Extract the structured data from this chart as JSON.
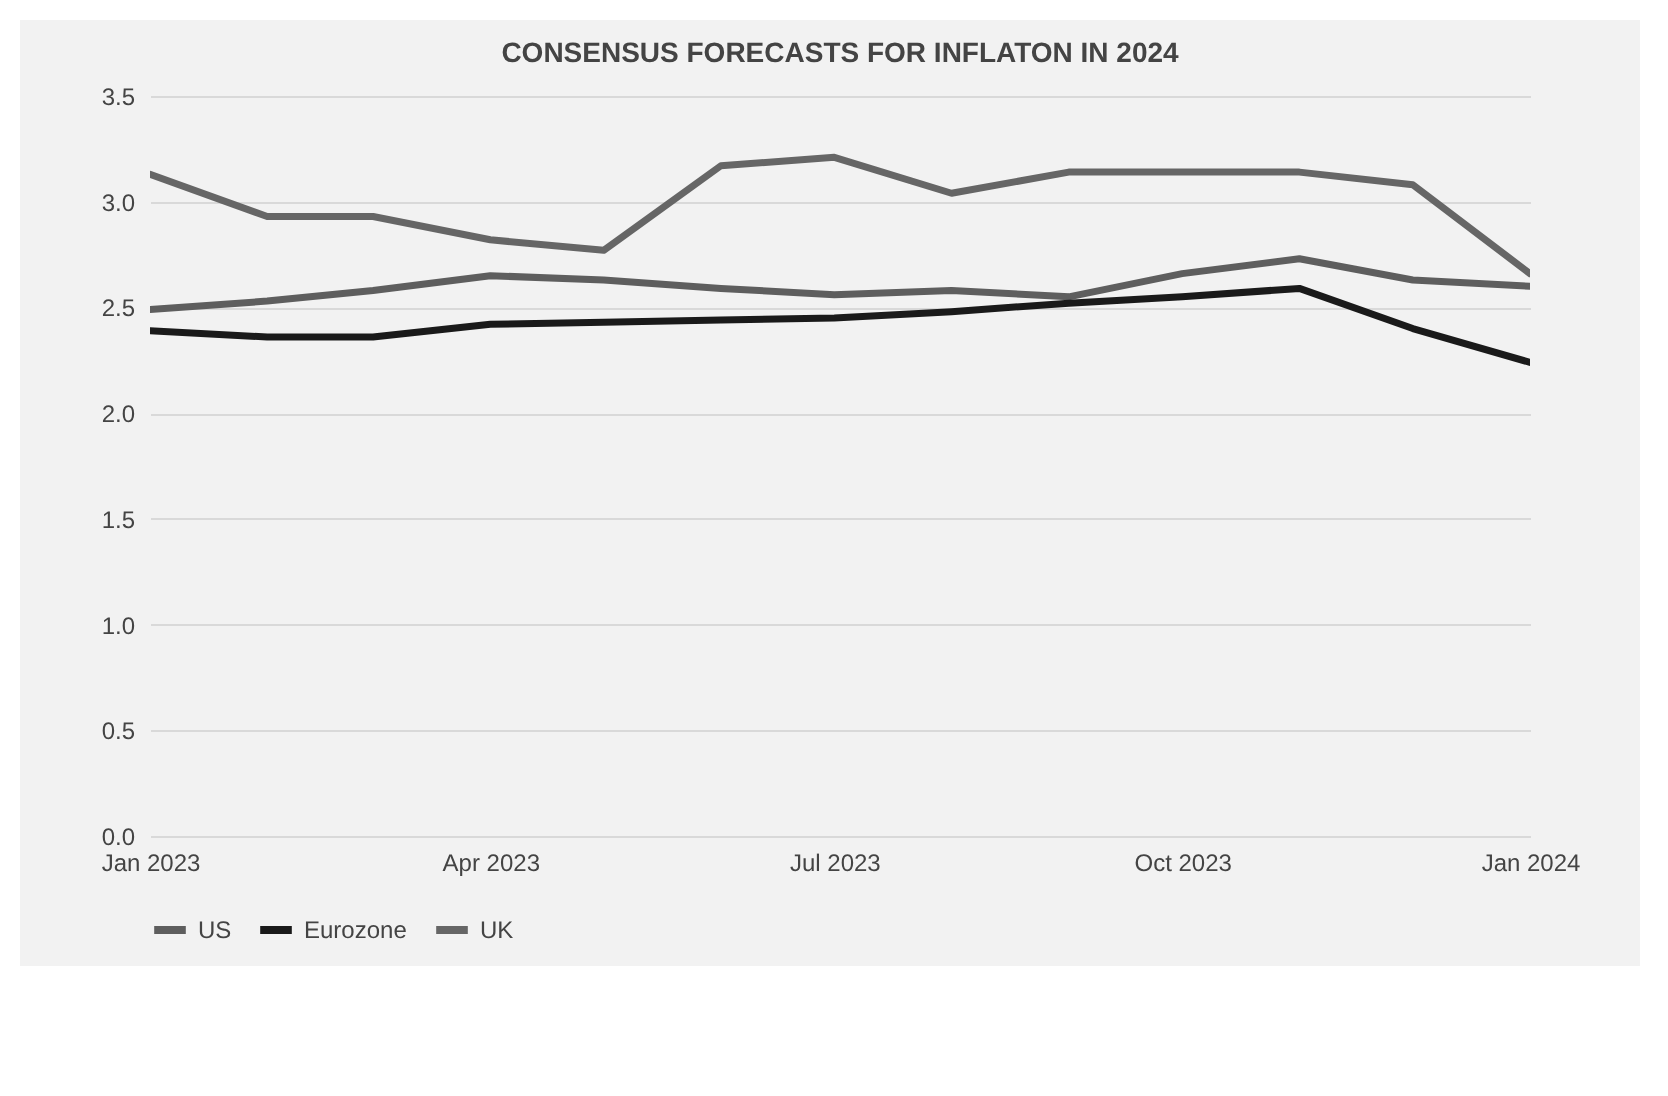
{
  "chart_data": {
    "type": "line",
    "title": "CONSENSUS FORECASTS FOR INFLATON IN 2024",
    "x": [
      "2023-01",
      "2023-02",
      "2023-03",
      "2023-04",
      "2023-05",
      "2023-06",
      "2023-07",
      "2023-08",
      "2023-09",
      "2023-10",
      "2023-11",
      "2023-12",
      "2024-01"
    ],
    "series": [
      {
        "name": "US",
        "color": "#5e5e5e",
        "values": [
          2.49,
          2.53,
          2.58,
          2.65,
          2.63,
          2.59,
          2.56,
          2.58,
          2.55,
          2.66,
          2.73,
          2.63,
          2.6
        ]
      },
      {
        "name": "Eurozone",
        "color": "#1a1a1a",
        "values": [
          2.39,
          2.36,
          2.36,
          2.42,
          2.43,
          2.44,
          2.45,
          2.48,
          2.52,
          2.55,
          2.59,
          2.4,
          2.24
        ]
      },
      {
        "name": "UK",
        "color": "#666666",
        "values": [
          3.13,
          2.93,
          2.93,
          2.82,
          2.77,
          3.17,
          3.21,
          3.04,
          3.14,
          3.14,
          3.14,
          3.08,
          2.66
        ]
      }
    ],
    "xlim": [
      "2023-01",
      "2024-01"
    ],
    "xticks": [
      {
        "value": "2023-01",
        "label": "Jan 2023"
      },
      {
        "value": "2023-04",
        "label": "Apr 2023"
      },
      {
        "value": "2023-07",
        "label": "Jul 2023"
      },
      {
        "value": "2023-10",
        "label": "Oct 2023"
      },
      {
        "value": "2024-01",
        "label": "Jan 2024"
      }
    ],
    "ylim": [
      0,
      3.5
    ],
    "yticks": [
      {
        "value": 0,
        "label": "0.0"
      },
      {
        "value": 0.5,
        "label": "0.5"
      },
      {
        "value": 1,
        "label": "1.0"
      },
      {
        "value": 1.5,
        "label": "1.5"
      },
      {
        "value": 2,
        "label": "2.0"
      },
      {
        "value": 2.5,
        "label": "2.5"
      },
      {
        "value": 3,
        "label": "3.0"
      },
      {
        "value": 3.5,
        "label": "3.5"
      }
    ],
    "grid": "y",
    "legend": "bottom",
    "line_style": "solid",
    "marker": "none"
  }
}
